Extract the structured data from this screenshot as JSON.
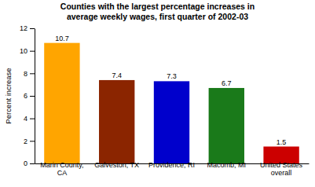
{
  "chart_data": {
    "type": "bar",
    "title": "Counties with the largest percentage increases in\naverage weekly wages, first quarter of 2002-03",
    "categories": [
      "Marin County,\nCA",
      "Galveston, TX",
      "Providence, RI",
      "Macomb, MI",
      "United States\noverall"
    ],
    "values": [
      10.7,
      7.4,
      7.3,
      6.7,
      1.5
    ],
    "colors": [
      "#FFA500",
      "#8B2500",
      "#0000CC",
      "#1A7A1A",
      "#CC0000"
    ],
    "ylabel": "Percent increase",
    "ylim": [
      0,
      12
    ],
    "yticks": [
      0,
      2,
      4,
      6,
      8,
      10,
      12
    ],
    "data_labels": true,
    "grid": false
  }
}
